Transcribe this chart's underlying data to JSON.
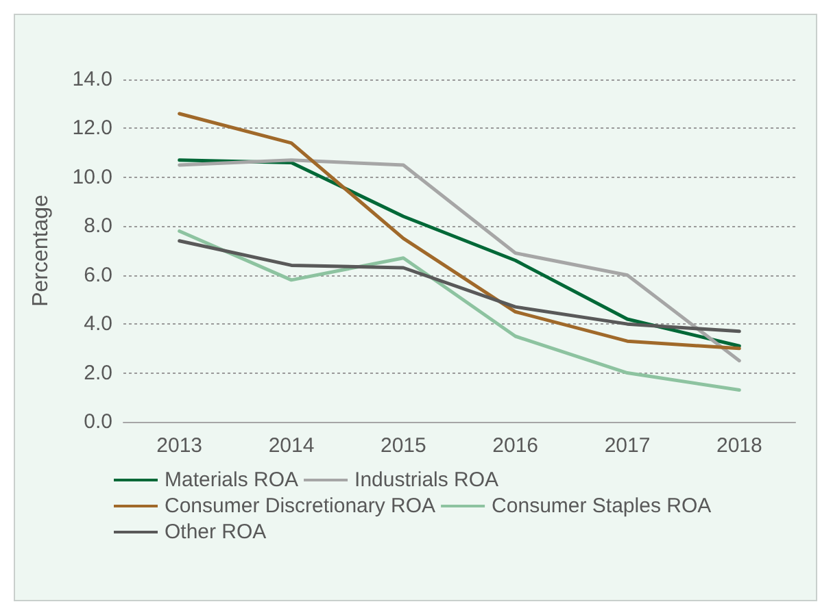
{
  "chart_data": {
    "type": "line",
    "ylabel": "Percentage",
    "categories": [
      "2013",
      "2014",
      "2015",
      "2016",
      "2017",
      "2018"
    ],
    "series": [
      {
        "name": "Materials ROA",
        "color": "#006837",
        "values": [
          10.7,
          10.6,
          8.4,
          6.6,
          4.2,
          3.1
        ]
      },
      {
        "name": "Industrials ROA",
        "color": "#a6a6a6",
        "values": [
          10.5,
          10.7,
          10.5,
          6.9,
          6.0,
          2.5
        ]
      },
      {
        "name": "Consumer Discretionary ROA",
        "color": "#a0692a",
        "values": [
          12.6,
          11.4,
          7.5,
          4.5,
          3.3,
          3.0
        ]
      },
      {
        "name": "Consumer Staples ROA",
        "color": "#8dc3a0",
        "values": [
          7.8,
          5.8,
          6.7,
          3.5,
          2.0,
          1.3
        ]
      },
      {
        "name": "Other ROA",
        "color": "#595959",
        "values": [
          7.4,
          6.4,
          6.3,
          4.7,
          4.0,
          3.7
        ]
      }
    ],
    "ylim": [
      0,
      14
    ],
    "yticks": [
      {
        "value": 0,
        "label": "0.0"
      },
      {
        "value": 2,
        "label": "2.0"
      },
      {
        "value": 4,
        "label": "4.0"
      },
      {
        "value": 6,
        "label": "6.0"
      },
      {
        "value": 8,
        "label": "8.0"
      },
      {
        "value": 10,
        "label": "10.0"
      },
      {
        "value": 12,
        "label": "12.0"
      },
      {
        "value": 14,
        "label": "14.0"
      }
    ],
    "grid": "y",
    "legend": "bottom",
    "marker": "none",
    "line_style": "solid"
  }
}
